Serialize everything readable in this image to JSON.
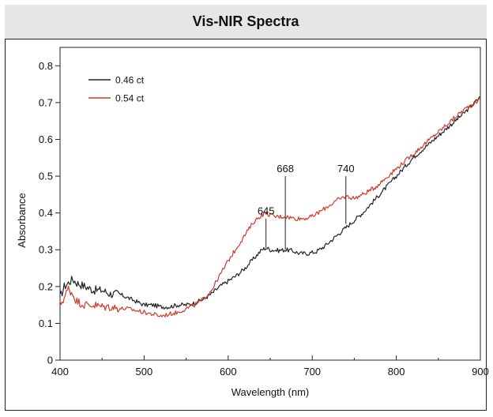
{
  "chart_data": {
    "type": "line",
    "title": "Vis-NIR Spectra",
    "xlabel": "Wavelength (nm)",
    "ylabel": "Absorbance",
    "xlim": [
      400,
      900
    ],
    "ylim": [
      0,
      0.85
    ],
    "x_ticks": [
      400,
      500,
      600,
      700,
      800,
      900
    ],
    "y_ticks": [
      0,
      0.1,
      0.2,
      0.3,
      0.4,
      0.5,
      0.6,
      0.7,
      0.8
    ],
    "y_tick_labels": [
      "0",
      "0.1",
      "0.2",
      "0.3",
      "0.4",
      "0.5",
      "0.6",
      "0.7",
      "0.8"
    ],
    "grid": false,
    "legend_position": "top-left",
    "series": [
      {
        "name": "0.46 ct",
        "color": "#222222",
        "points": [
          [
            400,
            0.17
          ],
          [
            405,
            0.2
          ],
          [
            410,
            0.21
          ],
          [
            415,
            0.22
          ],
          [
            420,
            0.21
          ],
          [
            430,
            0.2
          ],
          [
            440,
            0.19
          ],
          [
            450,
            0.19
          ],
          [
            460,
            0.18
          ],
          [
            470,
            0.18
          ],
          [
            480,
            0.17
          ],
          [
            490,
            0.16
          ],
          [
            500,
            0.15
          ],
          [
            510,
            0.15
          ],
          [
            520,
            0.145
          ],
          [
            530,
            0.145
          ],
          [
            540,
            0.15
          ],
          [
            550,
            0.15
          ],
          [
            560,
            0.155
          ],
          [
            570,
            0.165
          ],
          [
            580,
            0.18
          ],
          [
            590,
            0.2
          ],
          [
            600,
            0.215
          ],
          [
            610,
            0.23
          ],
          [
            620,
            0.25
          ],
          [
            630,
            0.275
          ],
          [
            640,
            0.3
          ],
          [
            645,
            0.305
          ],
          [
            650,
            0.3
          ],
          [
            660,
            0.298
          ],
          [
            668,
            0.3
          ],
          [
            675,
            0.298
          ],
          [
            685,
            0.29
          ],
          [
            695,
            0.29
          ],
          [
            705,
            0.295
          ],
          [
            715,
            0.31
          ],
          [
            725,
            0.33
          ],
          [
            740,
            0.36
          ],
          [
            760,
            0.4
          ],
          [
            780,
            0.45
          ],
          [
            800,
            0.5
          ],
          [
            820,
            0.55
          ],
          [
            840,
            0.59
          ],
          [
            860,
            0.63
          ],
          [
            880,
            0.67
          ],
          [
            900,
            0.715
          ]
        ]
      },
      {
        "name": "0.54 ct",
        "color": "#d23a2a",
        "points": [
          [
            400,
            0.15
          ],
          [
            405,
            0.17
          ],
          [
            410,
            0.195
          ],
          [
            415,
            0.18
          ],
          [
            420,
            0.16
          ],
          [
            430,
            0.15
          ],
          [
            440,
            0.15
          ],
          [
            450,
            0.145
          ],
          [
            460,
            0.145
          ],
          [
            470,
            0.14
          ],
          [
            480,
            0.14
          ],
          [
            490,
            0.135
          ],
          [
            500,
            0.13
          ],
          [
            510,
            0.125
          ],
          [
            520,
            0.12
          ],
          [
            530,
            0.125
          ],
          [
            540,
            0.13
          ],
          [
            550,
            0.14
          ],
          [
            560,
            0.15
          ],
          [
            570,
            0.165
          ],
          [
            580,
            0.19
          ],
          [
            590,
            0.23
          ],
          [
            600,
            0.27
          ],
          [
            610,
            0.305
          ],
          [
            620,
            0.34
          ],
          [
            630,
            0.375
          ],
          [
            640,
            0.395
          ],
          [
            645,
            0.4
          ],
          [
            655,
            0.39
          ],
          [
            668,
            0.39
          ],
          [
            680,
            0.385
          ],
          [
            690,
            0.385
          ],
          [
            700,
            0.39
          ],
          [
            710,
            0.405
          ],
          [
            720,
            0.42
          ],
          [
            730,
            0.435
          ],
          [
            740,
            0.445
          ],
          [
            750,
            0.44
          ],
          [
            760,
            0.45
          ],
          [
            775,
            0.47
          ],
          [
            790,
            0.5
          ],
          [
            800,
            0.52
          ],
          [
            820,
            0.56
          ],
          [
            840,
            0.6
          ],
          [
            860,
            0.64
          ],
          [
            880,
            0.68
          ],
          [
            900,
            0.71
          ]
        ]
      }
    ],
    "annotations": [
      {
        "label": "645",
        "x": 645,
        "y_low": 0.305,
        "y_high": 0.385
      },
      {
        "label": "668",
        "x": 668,
        "y_low": 0.3,
        "y_high": 0.5
      },
      {
        "label": "740",
        "x": 740,
        "y_low": 0.37,
        "y_high": 0.5
      }
    ]
  }
}
